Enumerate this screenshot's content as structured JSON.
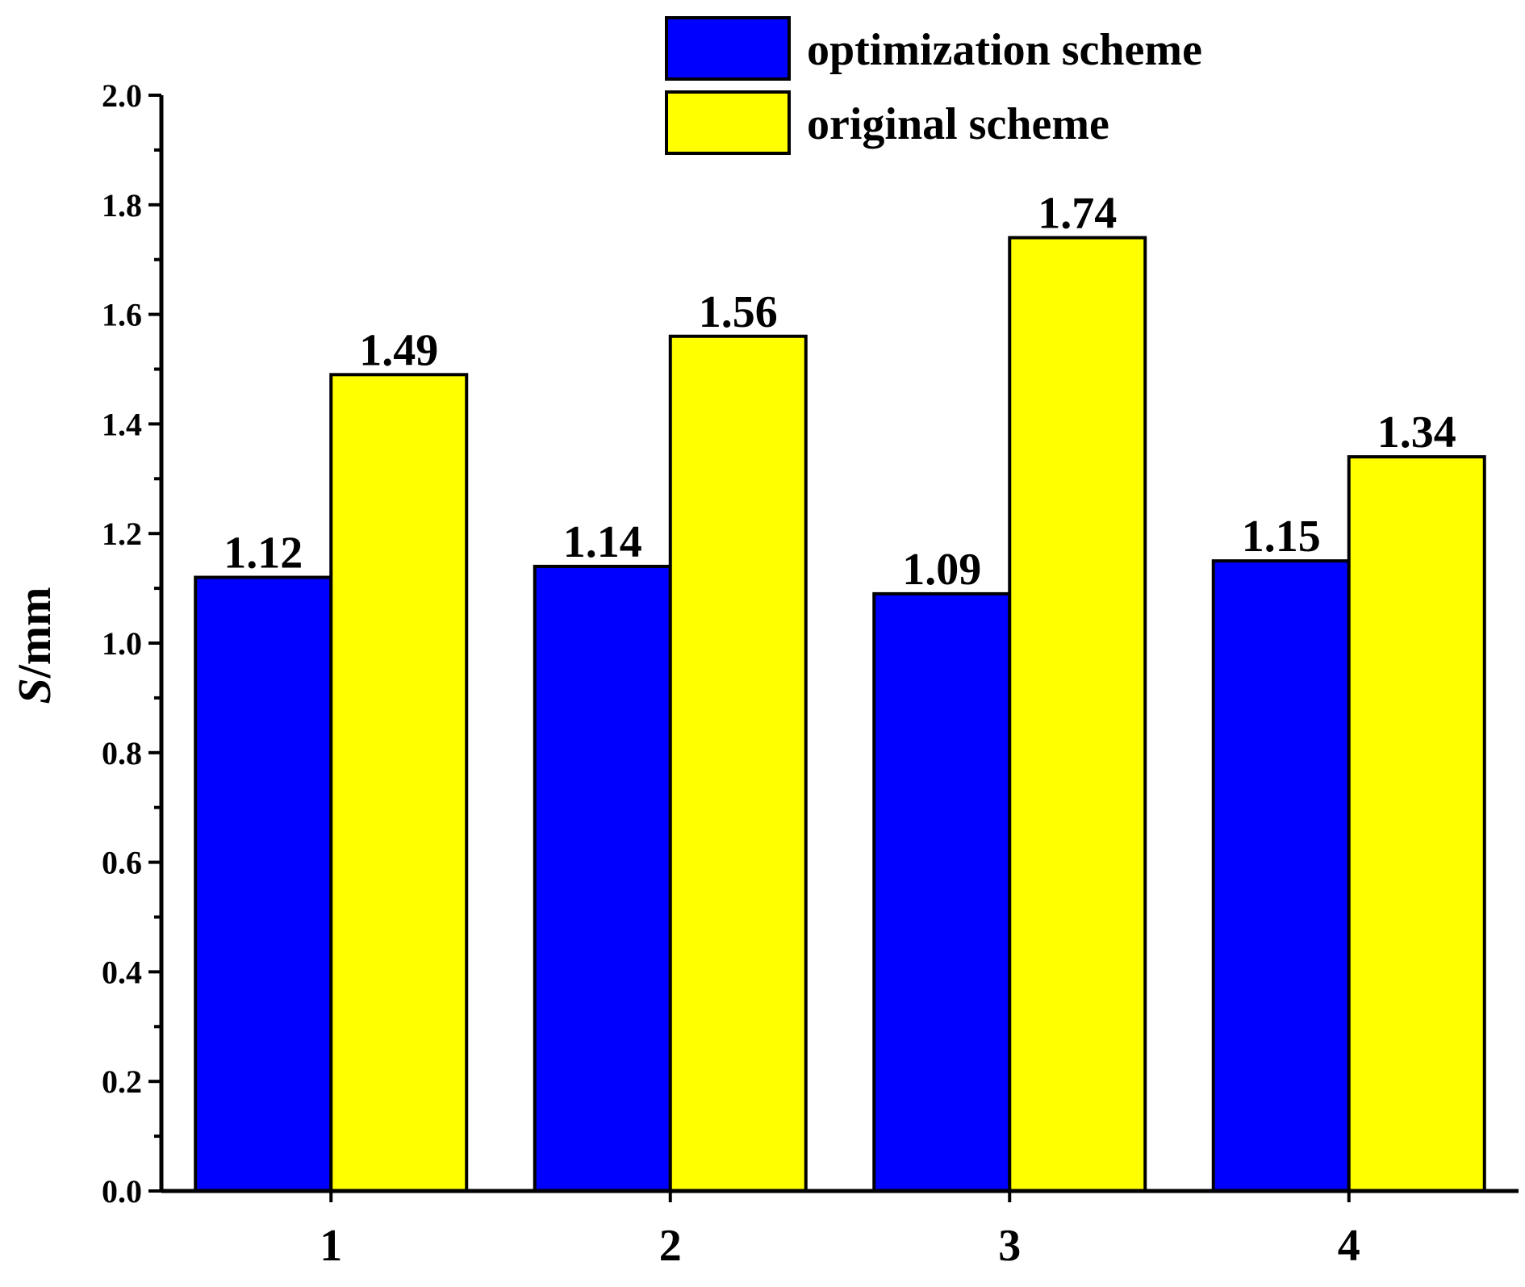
{
  "chart_data": {
    "type": "bar",
    "title": "",
    "xlabel": "",
    "ylabel_italic": "S",
    "ylabel_unit": "/mm",
    "categories": [
      "1",
      "2",
      "3",
      "4"
    ],
    "series": [
      {
        "name": "optimization scheme",
        "color": "#0000ff",
        "values": [
          1.12,
          1.14,
          1.09,
          1.15
        ],
        "labels": [
          "1.12",
          "1.14",
          "1.09",
          "1.15"
        ]
      },
      {
        "name": "original scheme",
        "color": "#ffff00",
        "values": [
          1.49,
          1.56,
          1.74,
          1.34
        ],
        "labels": [
          "1.49",
          "1.56",
          "1.74",
          "1.34"
        ]
      }
    ],
    "ylim": [
      0,
      2.0
    ],
    "yticks": [
      "0.0",
      "0.2",
      "0.4",
      "0.6",
      "0.8",
      "1.0",
      "1.2",
      "1.4",
      "1.6",
      "1.8",
      "2.0"
    ],
    "grid": false,
    "legend_position": "top-right"
  }
}
